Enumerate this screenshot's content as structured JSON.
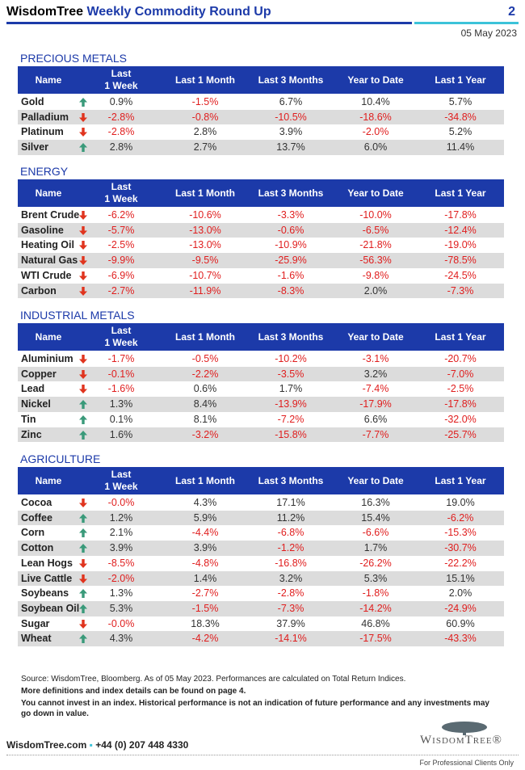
{
  "header": {
    "brand": "WisdomTree",
    "title": "Weekly Commodity Round Up",
    "page": "2",
    "date": "05 May 2023"
  },
  "sections": [
    {
      "title": "PRECIOUS METALS",
      "columns": [
        "Name",
        "Last\n1 Week",
        "Last 1 Month",
        "Last 3 Months",
        "Year to Date",
        "Last 1 Year"
      ],
      "rows": [
        {
          "name": "Gold",
          "trend": "up",
          "values": [
            "0.9%",
            "-1.5%",
            "6.7%",
            "10.4%",
            "5.7%"
          ]
        },
        {
          "name": "Palladium",
          "trend": "down",
          "values": [
            "-2.8%",
            "-0.8%",
            "-10.5%",
            "-18.6%",
            "-34.8%"
          ]
        },
        {
          "name": "Platinum",
          "trend": "down",
          "values": [
            "-2.8%",
            "2.8%",
            "3.9%",
            "-2.0%",
            "5.2%"
          ]
        },
        {
          "name": "Silver",
          "trend": "up",
          "values": [
            "2.8%",
            "2.7%",
            "13.7%",
            "6.0%",
            "11.4%"
          ]
        }
      ]
    },
    {
      "title": "ENERGY",
      "columns": [
        "Name",
        "Last\n1 Week",
        "Last 1 Month",
        "Last 3 Months",
        "Year to Date",
        "Last 1 Year"
      ],
      "rows": [
        {
          "name": "Brent Crude",
          "trend": "down",
          "values": [
            "-6.2%",
            "-10.6%",
            "-3.3%",
            "-10.0%",
            "-17.8%"
          ]
        },
        {
          "name": "Gasoline",
          "trend": "down",
          "values": [
            "-5.7%",
            "-13.0%",
            "-0.6%",
            "-6.5%",
            "-12.4%"
          ]
        },
        {
          "name": "Heating Oil",
          "trend": "down",
          "values": [
            "-2.5%",
            "-13.0%",
            "-10.9%",
            "-21.8%",
            "-19.0%"
          ]
        },
        {
          "name": "Natural Gas",
          "trend": "down",
          "values": [
            "-9.9%",
            "-9.5%",
            "-25.9%",
            "-56.3%",
            "-78.5%"
          ]
        },
        {
          "name": "WTI Crude",
          "trend": "down",
          "values": [
            "-6.9%",
            "-10.7%",
            "-1.6%",
            "-9.8%",
            "-24.5%"
          ]
        },
        {
          "name": "Carbon",
          "trend": "down",
          "values": [
            "-2.7%",
            "-11.9%",
            "-8.3%",
            "2.0%",
            "-7.3%"
          ]
        }
      ]
    },
    {
      "title": "INDUSTRIAL METALS",
      "columns": [
        "Name",
        "Last\n1 Week",
        "Last 1 Month",
        "Last 3 Months",
        "Year to Date",
        "Last 1 Year"
      ],
      "rows": [
        {
          "name": "Aluminium",
          "trend": "down",
          "values": [
            "-1.7%",
            "-0.5%",
            "-10.2%",
            "-3.1%",
            "-20.7%"
          ]
        },
        {
          "name": "Copper",
          "trend": "down",
          "values": [
            "-0.1%",
            "-2.2%",
            "-3.5%",
            "3.2%",
            "-7.0%"
          ]
        },
        {
          "name": "Lead",
          "trend": "down",
          "values": [
            "-1.6%",
            "0.6%",
            "1.7%",
            "-7.4%",
            "-2.5%"
          ]
        },
        {
          "name": "Nickel",
          "trend": "up",
          "values": [
            "1.3%",
            "8.4%",
            "-13.9%",
            "-17.9%",
            "-17.8%"
          ]
        },
        {
          "name": "Tin",
          "trend": "up",
          "values": [
            "0.1%",
            "8.1%",
            "-7.2%",
            "6.6%",
            "-32.0%"
          ]
        },
        {
          "name": "Zinc",
          "trend": "up",
          "values": [
            "1.6%",
            "-3.2%",
            "-15.8%",
            "-7.7%",
            "-25.7%"
          ]
        }
      ]
    },
    {
      "title": "AGRICULTURE",
      "columns": [
        "Name",
        "Last\n1 Week",
        "Last 1 Month",
        "Last 3 Months",
        "Year to Date",
        "Last 1 Year"
      ],
      "rows": [
        {
          "name": "Cocoa",
          "trend": "down",
          "values": [
            "-0.0%",
            "4.3%",
            "17.1%",
            "16.3%",
            "19.0%"
          ]
        },
        {
          "name": "Coffee",
          "trend": "up",
          "values": [
            "1.2%",
            "5.9%",
            "11.2%",
            "15.4%",
            "-6.2%"
          ]
        },
        {
          "name": "Corn",
          "trend": "up",
          "values": [
            "2.1%",
            "-4.4%",
            "-6.8%",
            "-6.6%",
            "-15.3%"
          ]
        },
        {
          "name": "Cotton",
          "trend": "up",
          "values": [
            "3.9%",
            "3.9%",
            "-1.2%",
            "1.7%",
            "-30.7%"
          ]
        },
        {
          "name": "Lean Hogs",
          "trend": "down",
          "values": [
            "-8.5%",
            "-4.8%",
            "-16.8%",
            "-26.2%",
            "-22.2%"
          ]
        },
        {
          "name": "Live Cattle",
          "trend": "down",
          "values": [
            "-2.0%",
            "1.4%",
            "3.2%",
            "5.3%",
            "15.1%"
          ]
        },
        {
          "name": "Soybeans",
          "trend": "up",
          "values": [
            "1.3%",
            "-2.7%",
            "-2.8%",
            "-1.8%",
            "2.0%"
          ]
        },
        {
          "name": "Soybean Oil",
          "trend": "up",
          "values": [
            "5.3%",
            "-1.5%",
            "-7.3%",
            "-14.2%",
            "-24.9%"
          ]
        },
        {
          "name": "Sugar",
          "trend": "down",
          "values": [
            "-0.0%",
            "18.3%",
            "37.9%",
            "46.8%",
            "60.9%"
          ]
        },
        {
          "name": "Wheat",
          "trend": "up",
          "values": [
            "4.3%",
            "-4.2%",
            "-14.1%",
            "-17.5%",
            "-43.3%"
          ]
        }
      ]
    }
  ],
  "notes": [
    "Source: WisdomTree, Bloomberg. As of 05 May 2023. Performances are calculated on Total Return Indices.",
    "More definitions and index details can be found on page 4.",
    "You cannot invest in an index. Historical performance is not an indication of future performance and any investments may go down in value."
  ],
  "footer": {
    "website": "WisdomTree.com",
    "phone": "+44 (0) 207 448 4330",
    "logo": "WisdomTree®",
    "tagline": "For Professional Clients Only"
  }
}
